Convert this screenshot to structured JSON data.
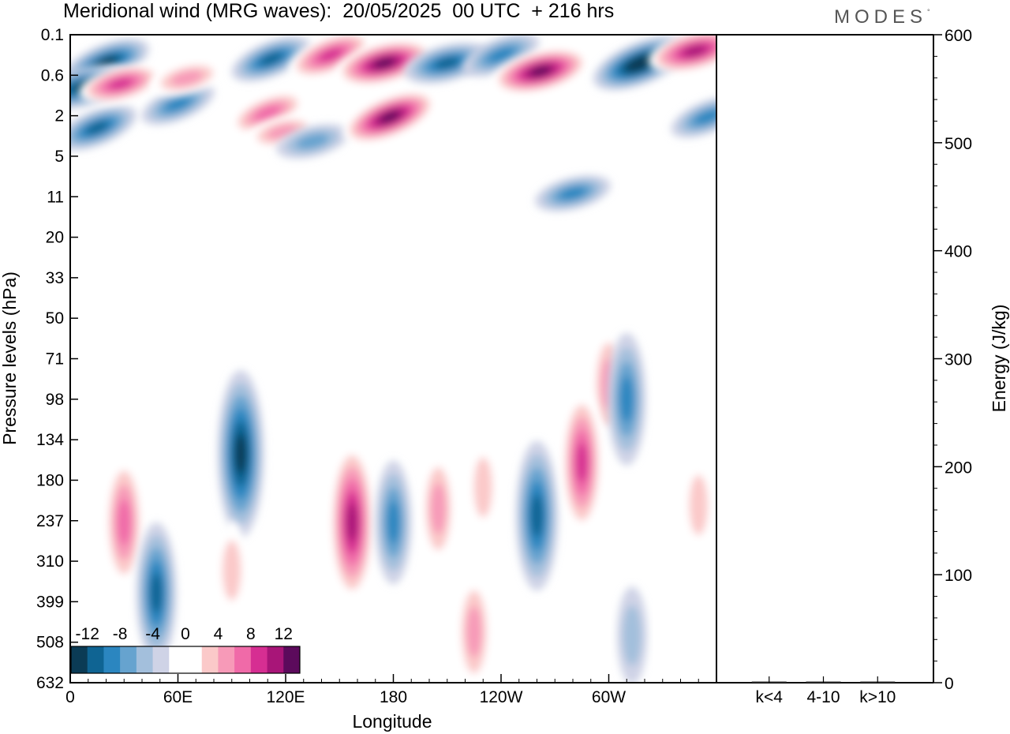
{
  "title": "Meridional wind (MRG waves):  20/05/2025  00 UTC  + 216 hrs",
  "logo": "MODES",
  "logo_mark": "°",
  "chart_data": [
    {
      "type": "heatmap",
      "xlabel": "Longitude",
      "ylabel": "Pressure levels (hPa)",
      "x_ticks": [
        "0",
        "60E",
        "120E",
        "180",
        "120W",
        "60W"
      ],
      "x_tick_values": [
        0,
        60,
        120,
        180,
        240,
        300
      ],
      "x_range": [
        0,
        360
      ],
      "y_ticks": [
        "0.1",
        "0.6",
        "2",
        "5",
        "11",
        "20",
        "33",
        "50",
        "71",
        "98",
        "134",
        "180",
        "237",
        "310",
        "399",
        "508",
        "632"
      ],
      "colorbar": {
        "tick_labels": [
          "-12",
          "-8",
          "-4",
          "0",
          "4",
          "8",
          "12"
        ],
        "levels": [
          -14,
          -12,
          -10,
          -8,
          -6,
          -4,
          -2,
          2,
          4,
          6,
          8,
          10,
          12,
          14
        ],
        "colors": [
          "#0b3b55",
          "#0f6493",
          "#2b86c0",
          "#66a3cf",
          "#a3bfdc",
          "#cfd3e6",
          "#ffffff",
          "#ffffff",
          "#fbc9c9",
          "#f79ab8",
          "#f06aa8",
          "#d62e92",
          "#a81578",
          "#5c0a5c"
        ]
      },
      "features": [
        {
          "lon": 20,
          "level": 0.45,
          "value": -11
        },
        {
          "lon": 8,
          "level": 1.0,
          "value": -12
        },
        {
          "lon": 15,
          "level": 2.9,
          "value": -9
        },
        {
          "lon": 28,
          "level": 0.9,
          "value": 9
        },
        {
          "lon": 60,
          "level": 1.6,
          "value": -7
        },
        {
          "lon": 65,
          "level": 0.7,
          "value": 6
        },
        {
          "lon": 110,
          "level": 1.9,
          "value": 8
        },
        {
          "lon": 118,
          "level": 3.2,
          "value": 5
        },
        {
          "lon": 112,
          "level": 0.4,
          "value": -9
        },
        {
          "lon": 135,
          "level": 3.9,
          "value": -6
        },
        {
          "lon": 145,
          "level": 0.35,
          "value": 10
        },
        {
          "lon": 175,
          "level": 0.45,
          "value": 13
        },
        {
          "lon": 178,
          "level": 2.1,
          "value": 13
        },
        {
          "lon": 210,
          "level": 0.45,
          "value": -10
        },
        {
          "lon": 240,
          "level": 0.35,
          "value": -8
        },
        {
          "lon": 262,
          "level": 0.55,
          "value": 13
        },
        {
          "lon": 318,
          "level": 0.45,
          "value": -14
        },
        {
          "lon": 348,
          "level": 0.3,
          "value": 12
        },
        {
          "lon": 355,
          "level": 2.1,
          "value": -7
        },
        {
          "lon": 280,
          "level": 10.5,
          "value": -7
        },
        {
          "lon": 300,
          "level": 88,
          "value": 6
        },
        {
          "lon": 310,
          "level": 98,
          "value": -8
        },
        {
          "lon": 95,
          "level": 150,
          "value": -12
        },
        {
          "lon": 157,
          "level": 240,
          "value": 11
        },
        {
          "lon": 180,
          "level": 240,
          "value": -7
        },
        {
          "lon": 205,
          "level": 220,
          "value": 6
        },
        {
          "lon": 230,
          "level": 190,
          "value": 4
        },
        {
          "lon": 260,
          "level": 230,
          "value": -10
        },
        {
          "lon": 285,
          "level": 160,
          "value": 9
        },
        {
          "lon": 30,
          "level": 240,
          "value": 8
        },
        {
          "lon": 48,
          "level": 380,
          "value": -9
        },
        {
          "lon": 90,
          "level": 330,
          "value": 4
        },
        {
          "lon": 225,
          "level": 480,
          "value": 6
        },
        {
          "lon": 313,
          "level": 490,
          "value": -4
        },
        {
          "lon": 350,
          "level": 215,
          "value": 4
        }
      ]
    },
    {
      "type": "bar",
      "categories": [
        "k<4",
        "4-10",
        "k>10"
      ],
      "values": [
        0.2,
        0.5,
        0
      ],
      "ylabel": "Energy (J/kg)",
      "ylim": [
        0,
        600
      ],
      "y_ticks": [
        "0",
        "100",
        "200",
        "300",
        "400",
        "500",
        "600"
      ]
    }
  ]
}
